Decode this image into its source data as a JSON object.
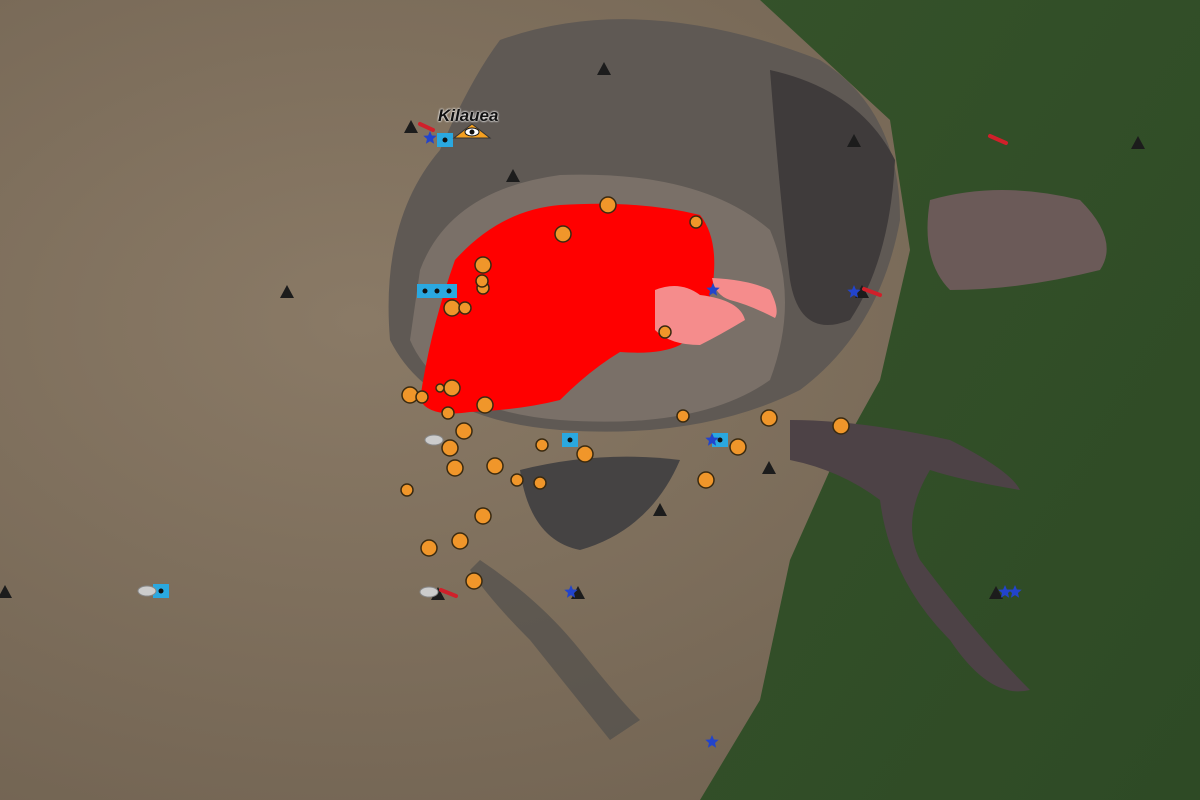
{
  "map": {
    "volcano_label": "Kilauea",
    "colors": {
      "terrain": "#7d6d5a",
      "caldera": "#5e5a57",
      "vegetation": "#3f5a2c",
      "lava_active": "#ff0000",
      "lava_recent": "#f58c8c",
      "earthquake": "#f0962a",
      "station_webcam": "#2aa8e0",
      "station_marker": "#1c1c1c",
      "gps_star": "#2244cc",
      "tilt": "#d0202a"
    },
    "icons": [
      "earthquake-circle-icon",
      "triangle-station-icon",
      "webcam-square-icon",
      "gas-cloud-icon",
      "gps-star-icon",
      "tiltmeter-icon",
      "observatory-eye-icon"
    ]
  }
}
